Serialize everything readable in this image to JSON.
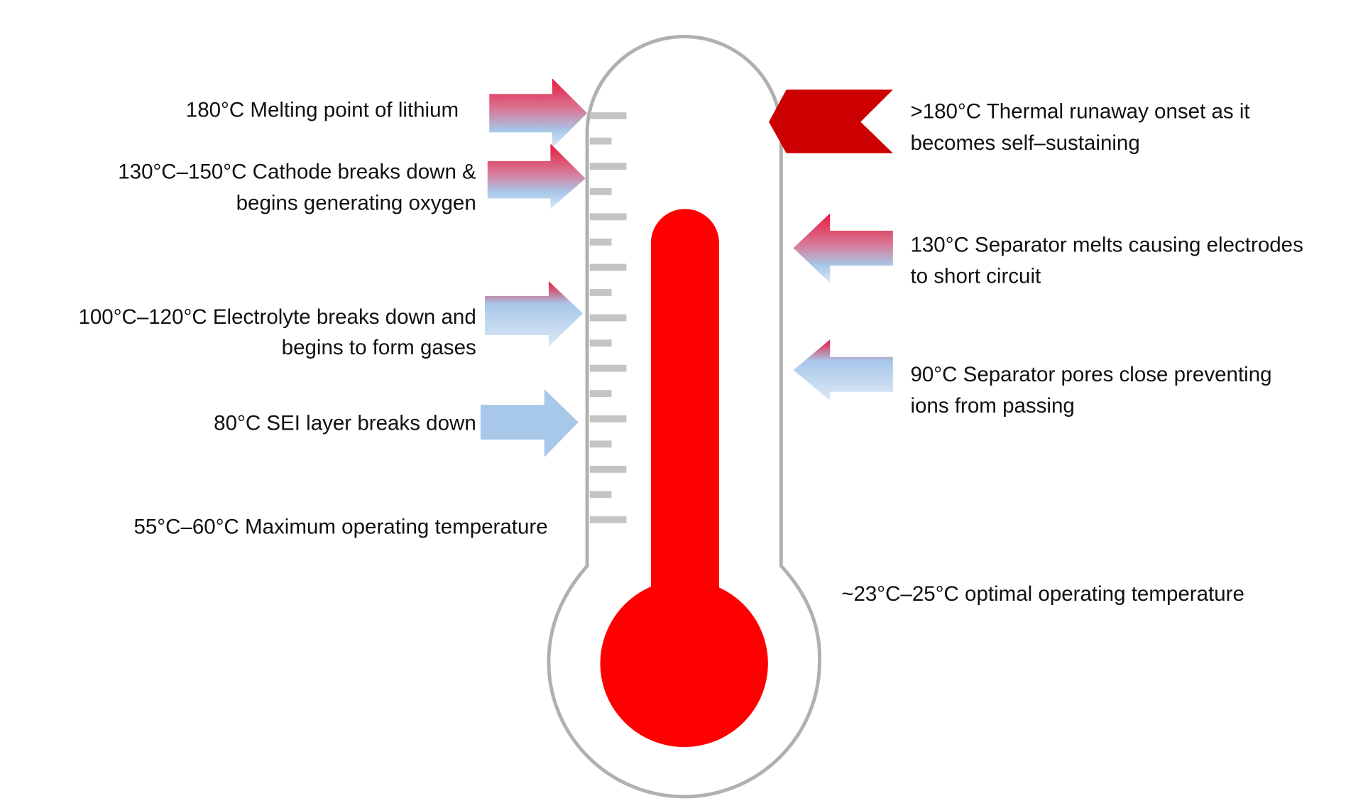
{
  "colors": {
    "mercury": "#ff0000",
    "runaway_chevron": "#cc0000",
    "arrow_top": "#e8203a",
    "arrow_bottom": "#a8c8ea",
    "outline": "#b0b0b0",
    "tick": "#c4c4c4"
  },
  "icons": {
    "thermometer": "thermometer-icon",
    "arrow": "gradient-arrow-icon",
    "chevron": "chevron-left-icon"
  },
  "left_labels": [
    {
      "lines": [
        "180°C Melting point of lithium"
      ]
    },
    {
      "lines": [
        "130°C–150°C  Cathode breaks down &",
        "begins generating oxygen"
      ]
    },
    {
      "lines": [
        "100°C–120°C Electrolyte breaks down and",
        "begins to form gases"
      ]
    },
    {
      "lines": [
        "80°C SEI layer breaks down"
      ]
    },
    {
      "lines": [
        "55°C–60°C Maximum operating temperature"
      ]
    }
  ],
  "right_labels": [
    {
      "lines": [
        ">180°C Thermal  runaway onset as it",
        "becomes self–sustaining"
      ]
    },
    {
      "lines": [
        "130°C Separator melts causing electrodes",
        "to short circuit"
      ]
    },
    {
      "lines": [
        "90°C Separator pores close preventing",
        "ions from passing"
      ]
    },
    {
      "lines": [
        "~23°C–25°C   optimal  operating temperature"
      ]
    }
  ]
}
